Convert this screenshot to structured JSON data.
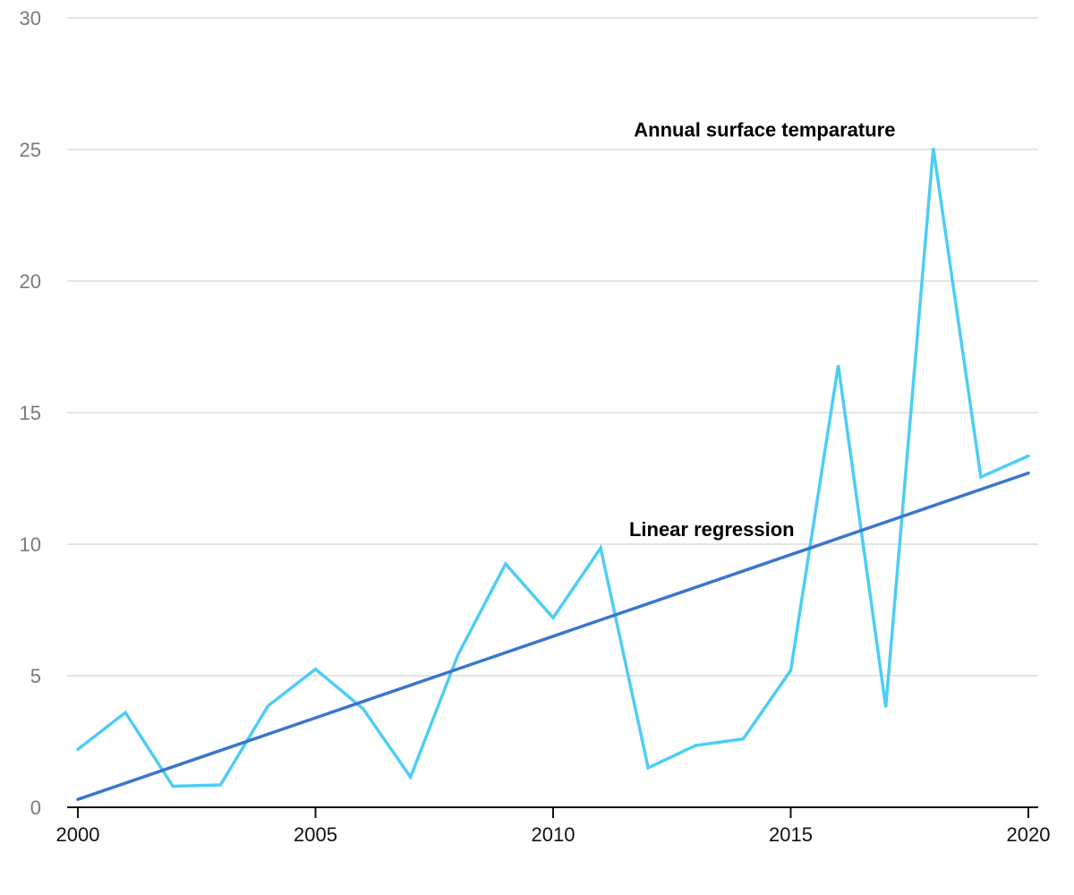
{
  "chart_data": {
    "type": "line",
    "title": "",
    "xlabel": "",
    "ylabel": "",
    "x": [
      2000,
      2001,
      2002,
      2003,
      2004,
      2005,
      2006,
      2007,
      2008,
      2009,
      2010,
      2011,
      2012,
      2013,
      2014,
      2015,
      2016,
      2017,
      2018,
      2019,
      2020
    ],
    "xlim": [
      2000,
      2020
    ],
    "ylim": [
      0,
      30
    ],
    "x_ticks": [
      2000,
      2005,
      2010,
      2015,
      2020
    ],
    "y_ticks": [
      0,
      5,
      10,
      15,
      20,
      25,
      30
    ],
    "grid": true,
    "series": [
      {
        "name": "Annual surface temparature",
        "color": "#4dcdf5",
        "values": [
          2.2,
          3.6,
          0.8,
          0.85,
          3.85,
          5.25,
          3.75,
          1.15,
          5.8,
          9.25,
          7.2,
          9.85,
          1.5,
          2.35,
          2.6,
          5.2,
          16.8,
          3.8,
          25.05,
          12.55,
          13.35
        ]
      },
      {
        "name": "Linear regression",
        "color": "#3b75cc",
        "values": [
          0.3,
          12.7
        ],
        "x": [
          2000,
          2020
        ]
      }
    ],
    "annotations": [
      {
        "text": "Annual surface temparature",
        "x": 2011.7,
        "y": 25.5
      },
      {
        "text": "Linear regression",
        "x": 2011.6,
        "y": 10.3
      }
    ]
  }
}
